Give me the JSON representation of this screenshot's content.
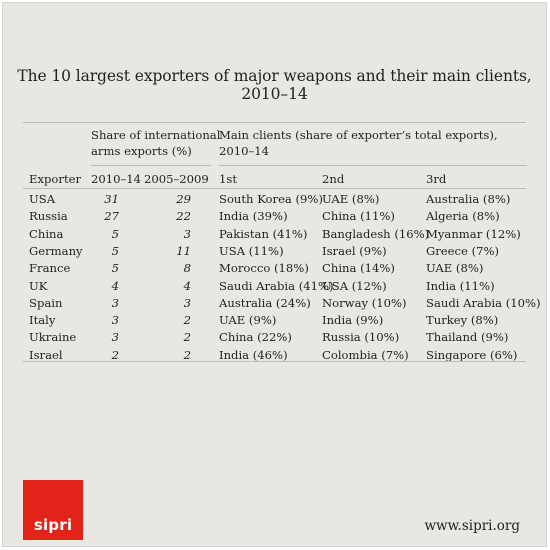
{
  "title": "The 10 largest exporters of major weapons and their main clients, 2010–14",
  "headers": {
    "share_group": "Share of international arms exports (%)",
    "share_line1": "Share of international",
    "share_line2": "arms exports (%)",
    "clients_group": "Main clients (share of exporter’s total exports), 2010–14",
    "clients_line1": "Main clients (share of exporter’s total exports),",
    "clients_line2": "2010–14",
    "exporter": "Exporter",
    "period1": "2010–14",
    "period2": "2005–2009",
    "first": "1st",
    "second": "2nd",
    "third": "3rd"
  },
  "rows": [
    {
      "exporter": "USA",
      "share_2010_14": "31",
      "share_2005_2009": "29",
      "first": "South Korea (9%)",
      "second": "UAE (8%)",
      "third": "Australia (8%)"
    },
    {
      "exporter": "Russia",
      "share_2010_14": "27",
      "share_2005_2009": "22",
      "first": "India (39%)",
      "second": "China (11%)",
      "third": "Algeria (8%)"
    },
    {
      "exporter": "China",
      "share_2010_14": "5",
      "share_2005_2009": "3",
      "first": "Pakistan (41%)",
      "second": "Bangladesh (16%)",
      "third": "Myanmar (12%)"
    },
    {
      "exporter": "Germany",
      "share_2010_14": "5",
      "share_2005_2009": "11",
      "first": "USA (11%)",
      "second": "Israel (9%)",
      "third": "Greece (7%)"
    },
    {
      "exporter": "France",
      "share_2010_14": "5",
      "share_2005_2009": "8",
      "first": "Morocco (18%)",
      "second": "China (14%)",
      "third": "UAE (8%)"
    },
    {
      "exporter": "UK",
      "share_2010_14": "4",
      "share_2005_2009": "4",
      "first": "Saudi Arabia (41%)",
      "second": "USA (12%)",
      "third": "India (11%)"
    },
    {
      "exporter": "Spain",
      "share_2010_14": "3",
      "share_2005_2009": "3",
      "first": "Australia (24%)",
      "second": "Norway (10%)",
      "third": "Saudi Arabia (10%)"
    },
    {
      "exporter": "Italy",
      "share_2010_14": "3",
      "share_2005_2009": "2",
      "first": "UAE (9%)",
      "second": "India (9%)",
      "third": "Turkey (8%)"
    },
    {
      "exporter": "Ukraine",
      "share_2010_14": "3",
      "share_2005_2009": "2",
      "first": "China (22%)",
      "second": "Russia (10%)",
      "third": "Thailand (9%)"
    },
    {
      "exporter": "Israel",
      "share_2010_14": "2",
      "share_2005_2009": "2",
      "first": "India (46%)",
      "second": "Colombia (7%)",
      "third": "Singapore (6%)"
    }
  ],
  "logo": {
    "text": "sipri",
    "color": "#e2231a"
  },
  "url": "www.sipri.org",
  "colors": {
    "background": "#e8e7e4",
    "text": "#222222",
    "rule": "#bdbbb6"
  }
}
